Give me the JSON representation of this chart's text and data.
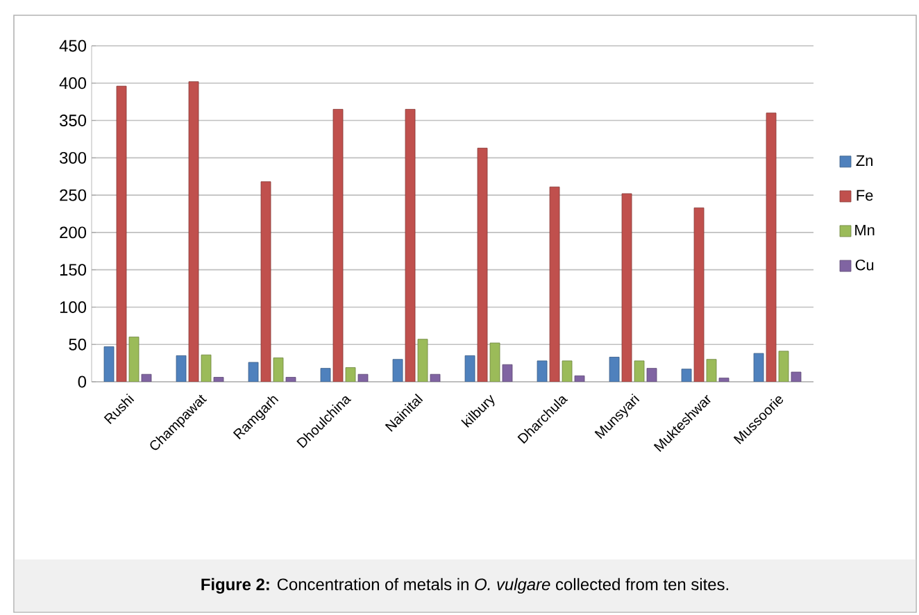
{
  "chart_data": {
    "type": "bar",
    "categories": [
      "Rushi",
      "Champawat",
      "Ramgarh",
      "Dhoulchina",
      "Nainital",
      "kilbury",
      "Dharchula",
      "Munsyari",
      "Mukteshwar",
      "Mussoorie"
    ],
    "series": [
      {
        "name": "Zn",
        "color": "#4f81bd",
        "values": [
          47,
          35,
          26,
          18,
          30,
          35,
          28,
          33,
          17,
          38
        ]
      },
      {
        "name": "Fe",
        "color": "#c0504d",
        "values": [
          396,
          402,
          268,
          365,
          365,
          313,
          261,
          252,
          233,
          360
        ]
      },
      {
        "name": "Mn",
        "color": "#9bbb59",
        "values": [
          60,
          36,
          32,
          19,
          57,
          52,
          28,
          28,
          30,
          41
        ]
      },
      {
        "name": "Cu",
        "color": "#8064a2",
        "values": [
          10,
          6,
          6,
          10,
          10,
          23,
          8,
          18,
          5,
          13
        ]
      }
    ],
    "ylim": [
      0,
      450
    ],
    "yticks": [
      0,
      50,
      100,
      150,
      200,
      250,
      300,
      350,
      400,
      450
    ],
    "grid": "y",
    "legend": "right",
    "annotations": [
      "**Figure 2:** Concentration of metals in *O. vulgare* collected from ten sites."
    ]
  }
}
